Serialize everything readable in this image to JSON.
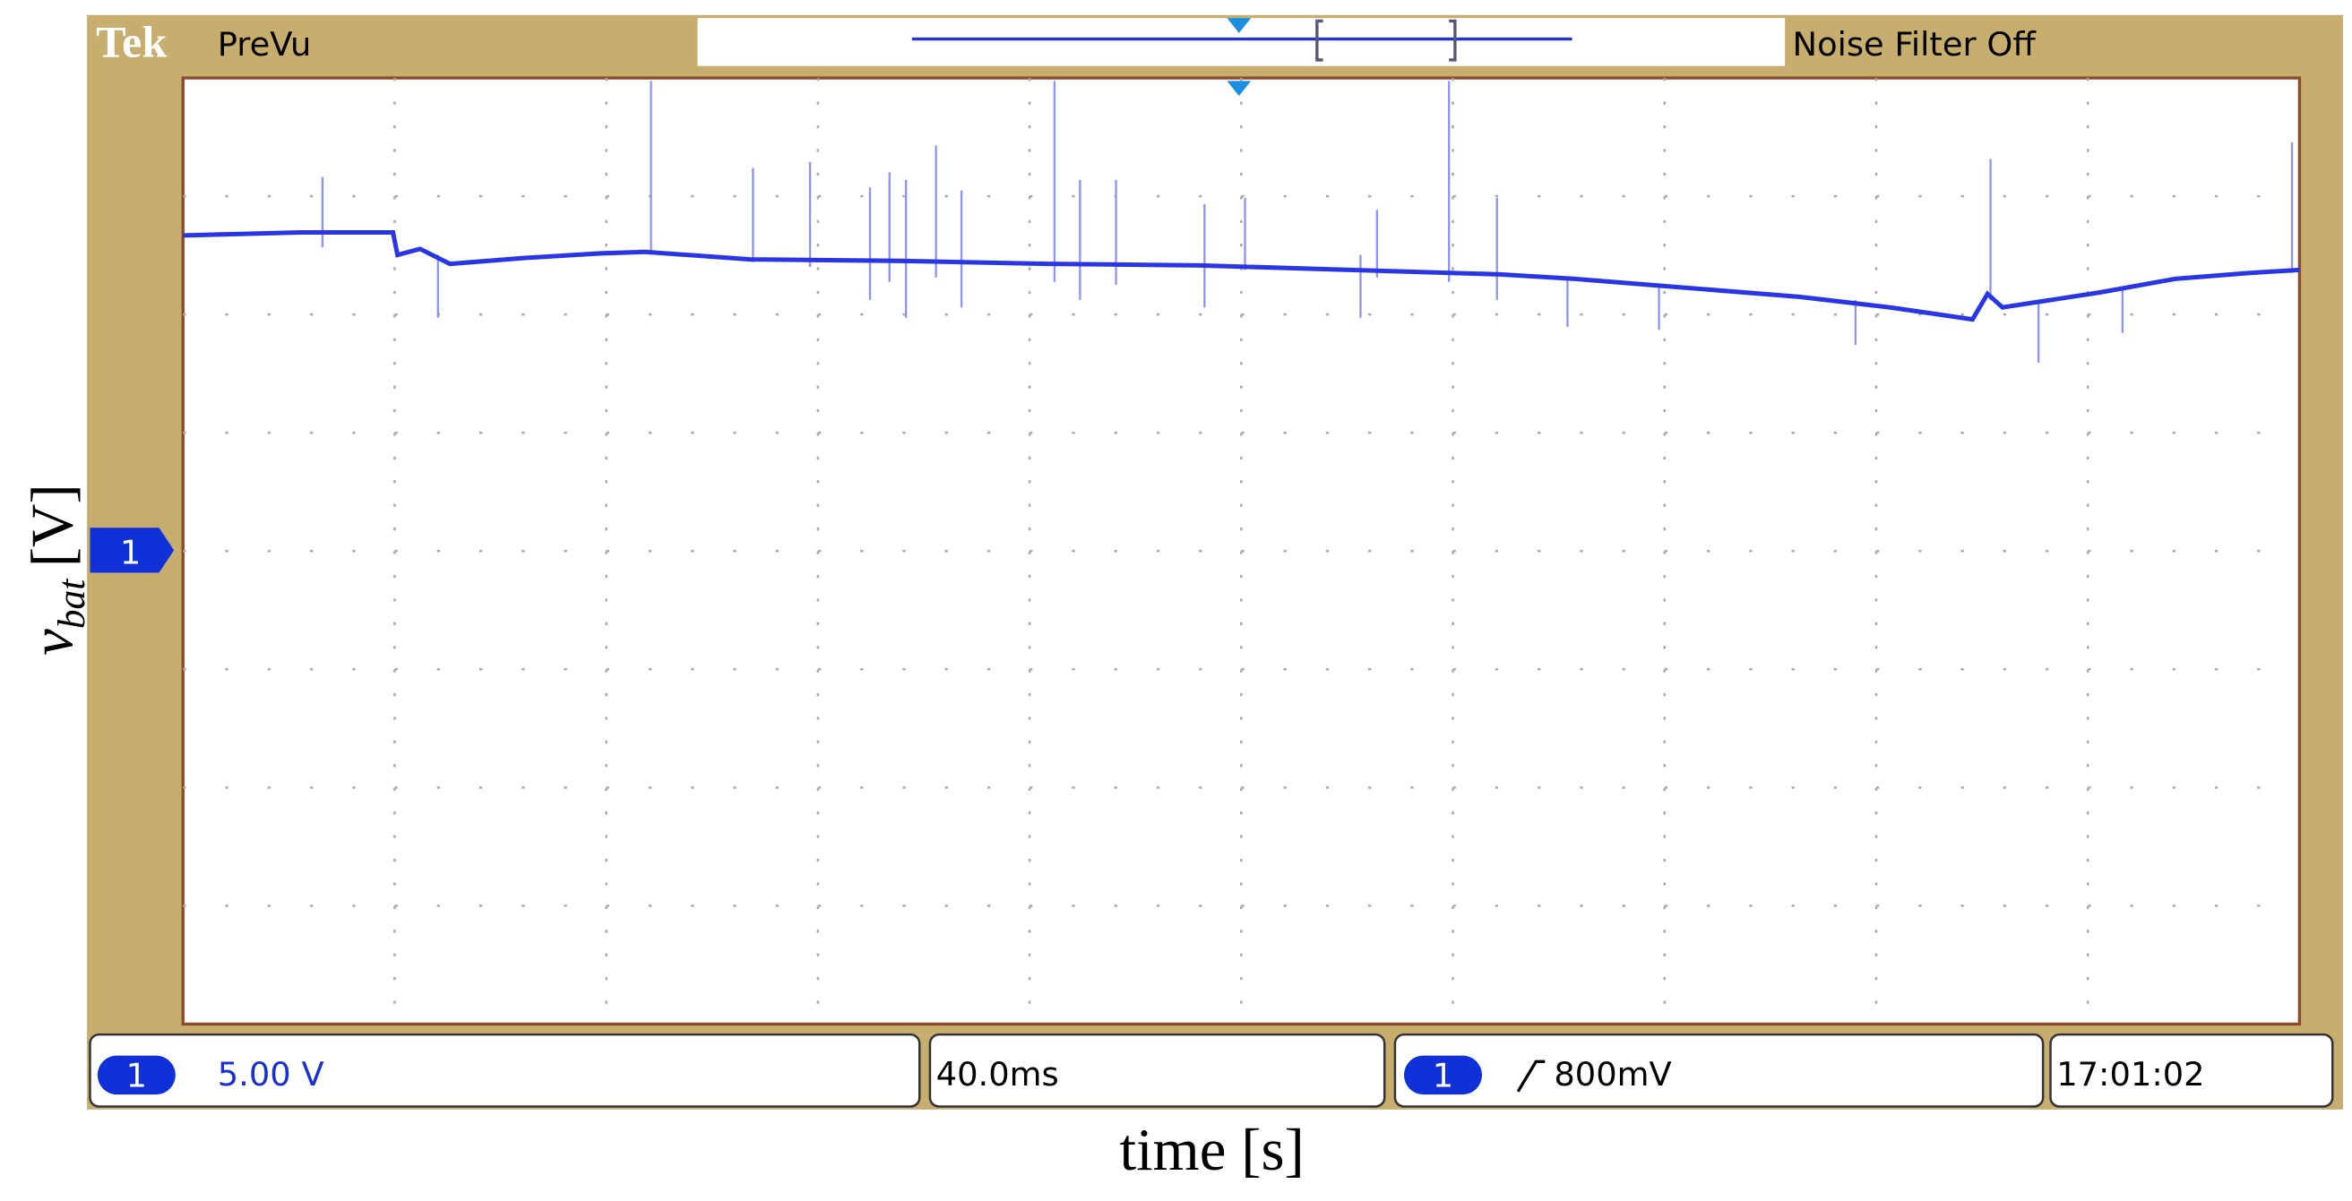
{
  "header": {
    "brand": "Tek",
    "mode": "PreVu",
    "filter": "Noise Filter Off"
  },
  "channel_marker": "1",
  "status_bar": {
    "channel": "1",
    "scale": "5.00 V",
    "timebase": "40.0ms",
    "trigger_channel": "1",
    "trigger_level": "800mV",
    "clock": "17:01:02"
  },
  "axes": {
    "y_label": {
      "symbol": "v",
      "subscript": "bat",
      "unit": "[V]"
    },
    "x_label": "time [s]"
  }
}
